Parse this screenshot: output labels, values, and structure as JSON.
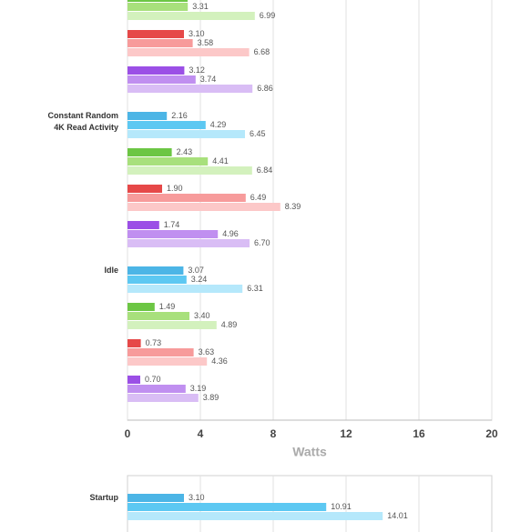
{
  "chart_data": [
    {
      "type": "bar",
      "orientation": "horizontal",
      "xlim": [
        0,
        20
      ],
      "xticks": [
        0,
        4,
        8,
        12,
        16,
        20
      ],
      "xlabel": "Watts",
      "grid": true,
      "sections": [
        {
          "groups": [
            {
              "colors": [
                "#6cc644",
                "#a8e07c",
                "#d3f1bd"
              ],
              "values": [
                3.3,
                3.31,
                6.99
              ],
              "value_labels": [
                null,
                "3.31",
                "6.99"
              ]
            },
            {
              "colors": [
                "#e64848",
                "#f79b9b",
                "#fcc8c8"
              ],
              "values": [
                3.1,
                3.58,
                6.68
              ],
              "value_labels": [
                "3.10",
                "3.58",
                "6.68"
              ]
            },
            {
              "colors": [
                "#9b4fe6",
                "#c08ff0",
                "#d9bdf5"
              ],
              "values": [
                3.12,
                3.74,
                6.86
              ],
              "value_labels": [
                "3.12",
                "3.74",
                "6.86"
              ]
            }
          ]
        },
        {
          "label": [
            "Constant Random",
            "4K Read Activity"
          ],
          "groups": [
            {
              "colors": [
                "#4cb5e6",
                "#5dc8f2",
                "#b5e8fb"
              ],
              "values": [
                2.16,
                4.29,
                6.45
              ],
              "value_labels": [
                "2.16",
                "4.29",
                "6.45"
              ]
            },
            {
              "colors": [
                "#6cc644",
                "#a8e07c",
                "#d3f1bd"
              ],
              "values": [
                2.43,
                4.41,
                6.84
              ],
              "value_labels": [
                "2.43",
                "4.41",
                "6.84"
              ]
            },
            {
              "colors": [
                "#e64848",
                "#f79b9b",
                "#fcc8c8"
              ],
              "values": [
                1.9,
                6.49,
                8.39
              ],
              "value_labels": [
                "1.90",
                "6.49",
                "8.39"
              ]
            },
            {
              "colors": [
                "#9b4fe6",
                "#c08ff0",
                "#d9bdf5"
              ],
              "values": [
                1.74,
                4.96,
                6.7
              ],
              "value_labels": [
                "1.74",
                "4.96",
                "6.70"
              ]
            }
          ]
        },
        {
          "label": [
            "Idle"
          ],
          "groups": [
            {
              "colors": [
                "#4cb5e6",
                "#5dc8f2",
                "#b5e8fb"
              ],
              "values": [
                3.07,
                3.24,
                6.31
              ],
              "value_labels": [
                "3.07",
                "3.24",
                "6.31"
              ]
            },
            {
              "colors": [
                "#6cc644",
                "#a8e07c",
                "#d3f1bd"
              ],
              "values": [
                1.49,
                3.4,
                4.89
              ],
              "value_labels": [
                "1.49",
                "3.40",
                "4.89"
              ]
            },
            {
              "colors": [
                "#e64848",
                "#f79b9b",
                "#fcc8c8"
              ],
              "values": [
                0.73,
                3.63,
                4.36
              ],
              "value_labels": [
                "0.73",
                "3.63",
                "4.36"
              ]
            },
            {
              "colors": [
                "#9b4fe6",
                "#c08ff0",
                "#d9bdf5"
              ],
              "values": [
                0.7,
                3.19,
                3.89
              ],
              "value_labels": [
                "0.70",
                "3.19",
                "3.89"
              ]
            }
          ]
        }
      ]
    },
    {
      "type": "bar",
      "orientation": "horizontal",
      "xlim": [
        0,
        20
      ],
      "gridlines": [
        4,
        8,
        12,
        16
      ],
      "grid": true,
      "sections": [
        {
          "label": [
            "Startup"
          ],
          "groups": [
            {
              "colors": [
                "#4cb5e6",
                "#5dc8f2",
                "#b5e8fb"
              ],
              "values": [
                3.1,
                10.91,
                14.01
              ],
              "value_labels": [
                "3.10",
                "10.91",
                "14.01"
              ]
            }
          ]
        }
      ]
    }
  ]
}
